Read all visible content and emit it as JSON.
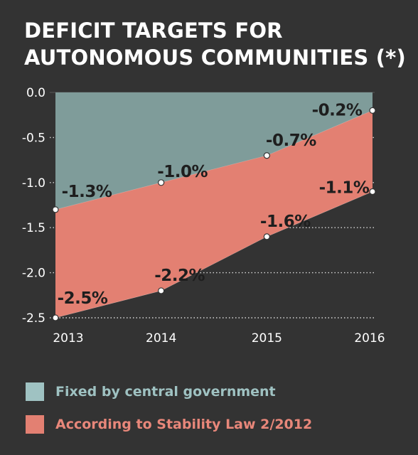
{
  "title": "DEFICIT TARGETS FOR AUTONOMOUS COMMUNITIES (*)",
  "colors": {
    "background": "#333333",
    "series_upper": "#7f9c9a",
    "series_lower": "#e38072",
    "legend_upper_text": "#9fc2c2",
    "legend_lower_text": "#e8877a",
    "label_text": "#1e1e1e"
  },
  "legend": [
    {
      "label": "Fixed by central government",
      "swatch": "#9fc2c2",
      "text_color": "#9fc2c2"
    },
    {
      "label": "According to Stability Law 2/2012",
      "swatch": "#e38072",
      "text_color": "#e8877a"
    }
  ],
  "chart_data": {
    "type": "area",
    "title": "DEFICIT TARGETS FOR AUTONOMOUS COMMUNITIES (*)",
    "x": [
      "2013",
      "2014",
      "2015",
      "2016"
    ],
    "yticks": [
      "0.0",
      "-0.5",
      "-1.0",
      "-1.5",
      "-2.0",
      "-2.5"
    ],
    "ylim": [
      -2.5,
      0
    ],
    "grid": "horizontal-dotted",
    "legend_position": "bottom",
    "series": [
      {
        "name": "Fixed by central government",
        "values": [
          -1.3,
          -1.0,
          -0.7,
          -0.2
        ],
        "labels": [
          "-1.3%",
          "-1.0%",
          "-0.7%",
          "-0.2%"
        ]
      },
      {
        "name": "According to Stability Law 2/2012",
        "values": [
          -2.5,
          -2.2,
          -1.6,
          -1.1
        ],
        "labels": [
          "-2.5%",
          "-2.2%",
          "-1.6%",
          "-1.1%"
        ]
      }
    ]
  }
}
